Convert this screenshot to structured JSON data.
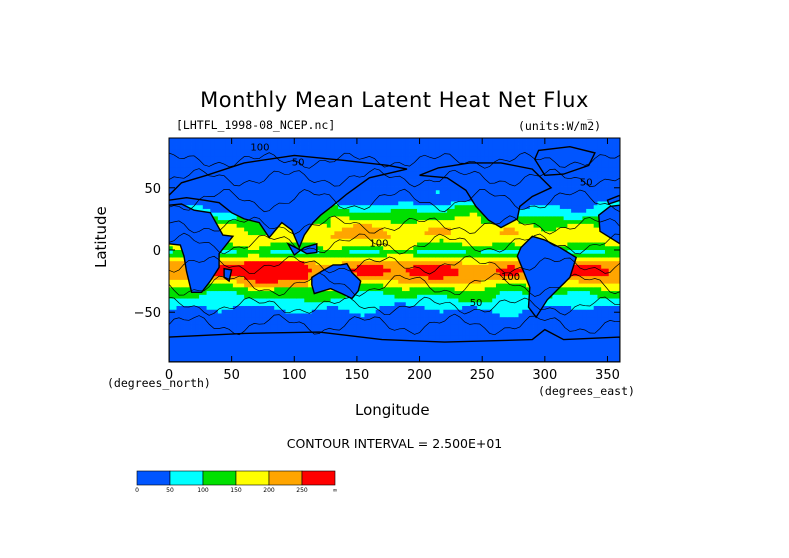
{
  "chart_data": {
    "type": "heatmap",
    "title": "Monthly Mean Latent Heat Net Flux",
    "subtitle_left": "[LHTFL_1998-08_NCEP.nc]",
    "subtitle_right": "(units:W/m^2)",
    "xlabel": "Longitude",
    "ylabel": "Latitude",
    "x_unit_label": "(degrees_east)",
    "y_unit_label": "(degrees_north)",
    "xlim": [
      0,
      360
    ],
    "ylim": [
      -90,
      90
    ],
    "x_ticks": [
      0,
      50,
      100,
      150,
      200,
      250,
      300,
      350
    ],
    "x_tick_labels": [
      "0",
      "50",
      "100",
      "150",
      "200",
      "250",
      "300",
      "350"
    ],
    "y_ticks": [
      50,
      0,
      -50
    ],
    "y_tick_labels": [
      "50",
      "0",
      "−50"
    ],
    "contour_interval_text": "CONTOUR INTERVAL = 2.500E+01",
    "contour_interval": 25,
    "colorbar": {
      "levels": [
        0,
        50,
        100,
        150,
        200,
        250
      ],
      "labels": [
        "0",
        "50",
        "100",
        "150",
        "200",
        "250",
        "∞"
      ],
      "colors": [
        "#0055ff",
        "#00ffff",
        "#00d8d8",
        "#00e000",
        "#ffff00",
        "#ffa500",
        "#ff0000"
      ]
    },
    "inline_contour_labels": [
      {
        "text": "100",
        "lon": 65,
        "lat": 80
      },
      {
        "text": "50",
        "lon": 98,
        "lat": 68
      },
      {
        "text": "50",
        "lon": 328,
        "lat": 52
      },
      {
        "text": "100",
        "lon": 160,
        "lat": 3
      },
      {
        "text": "100",
        "lon": 265,
        "lat": -24
      },
      {
        "text": "50",
        "lon": 240,
        "lat": -45
      }
    ]
  }
}
